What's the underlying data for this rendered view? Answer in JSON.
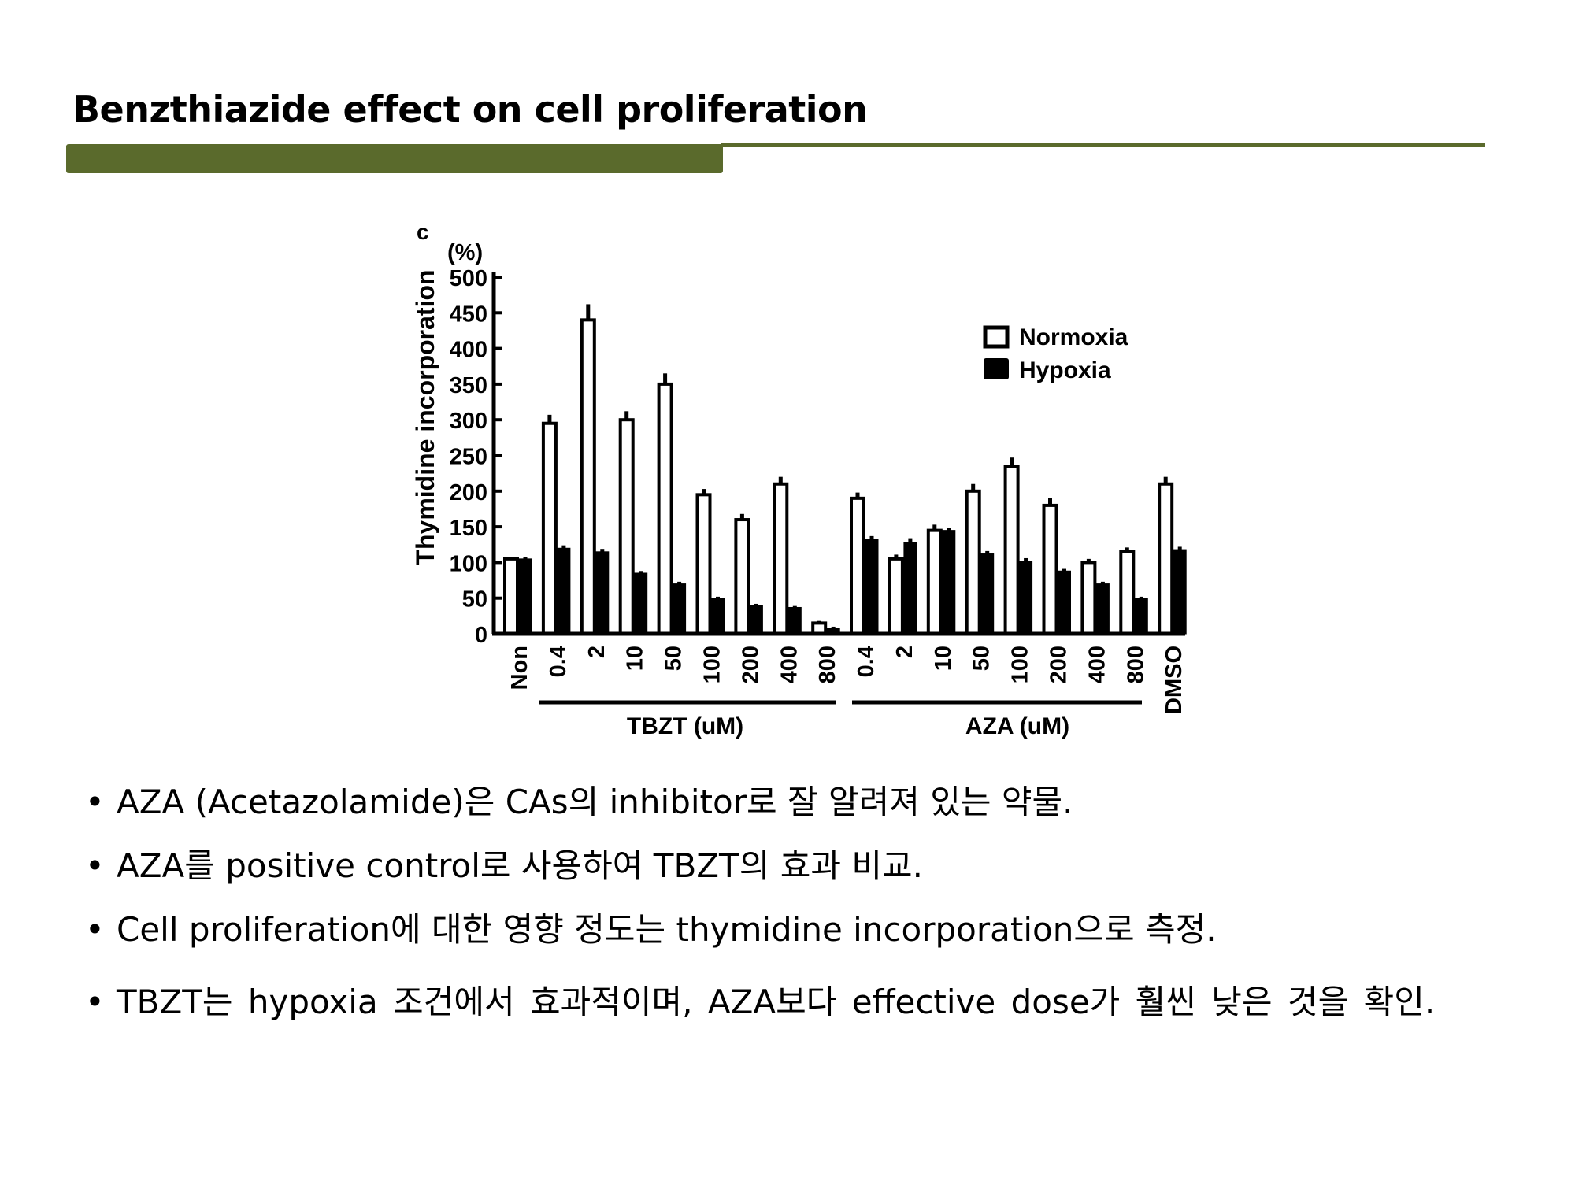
{
  "slide": {
    "title": "Benzthiazide effect on cell proliferation",
    "rule_color": "#5a6a2c"
  },
  "chart_data": {
    "type": "bar",
    "panel_label": "c",
    "unit_label": "(%)",
    "ylabel": "Thymidine incorporation",
    "ylim": [
      0,
      500
    ],
    "yticks": [
      0,
      50,
      100,
      150,
      200,
      250,
      300,
      350,
      400,
      450,
      500
    ],
    "categories": [
      "Non",
      "0.4",
      "2",
      "10",
      "50",
      "100",
      "200",
      "400",
      "800",
      "0.4",
      "2",
      "10",
      "50",
      "100",
      "200",
      "400",
      "800",
      "DMSO"
    ],
    "groups": [
      {
        "label": "TBZT (uM)",
        "from": 1,
        "to": 8
      },
      {
        "label": "AZA (uM)",
        "from": 9,
        "to": 16
      }
    ],
    "legend": {
      "position": "top-right",
      "entries": [
        "Normoxia",
        "Hypoxia"
      ]
    },
    "series": [
      {
        "name": "Normoxia",
        "fill": "#ffffff",
        "stroke": "#000000",
        "values": [
          105,
          295,
          440,
          300,
          350,
          195,
          160,
          210,
          15,
          190,
          105,
          145,
          200,
          235,
          180,
          100,
          115,
          210
        ],
        "errors": [
          3,
          12,
          22,
          12,
          15,
          8,
          8,
          10,
          3,
          8,
          6,
          8,
          10,
          12,
          10,
          5,
          6,
          10
        ]
      },
      {
        "name": "Hypoxia",
        "fill": "#000000",
        "stroke": "#000000",
        "values": [
          105,
          120,
          115,
          85,
          70,
          50,
          40,
          37,
          8,
          133,
          128,
          145,
          112,
          102,
          88,
          70,
          50,
          118
        ],
        "errors": [
          3,
          4,
          4,
          3,
          3,
          2,
          2,
          2,
          2,
          4,
          6,
          4,
          4,
          4,
          3,
          3,
          2,
          4
        ]
      }
    ]
  },
  "bullets": [
    "AZA (Acetazolamide)은 CAs의 inhibitor로 잘 알려져 있는 약물.",
    "AZA를 positive control로 사용하여 TBZT의 효과 비교.",
    "Cell proliferation에 대한 영향 정도는 thymidine incorporation으로 측정.",
    "TBZT는 hypoxia 조건에서 효과적이며, AZA보다 effective dose가 훨씬 낮은 것을 확인."
  ],
  "bullet_symbol": "•"
}
